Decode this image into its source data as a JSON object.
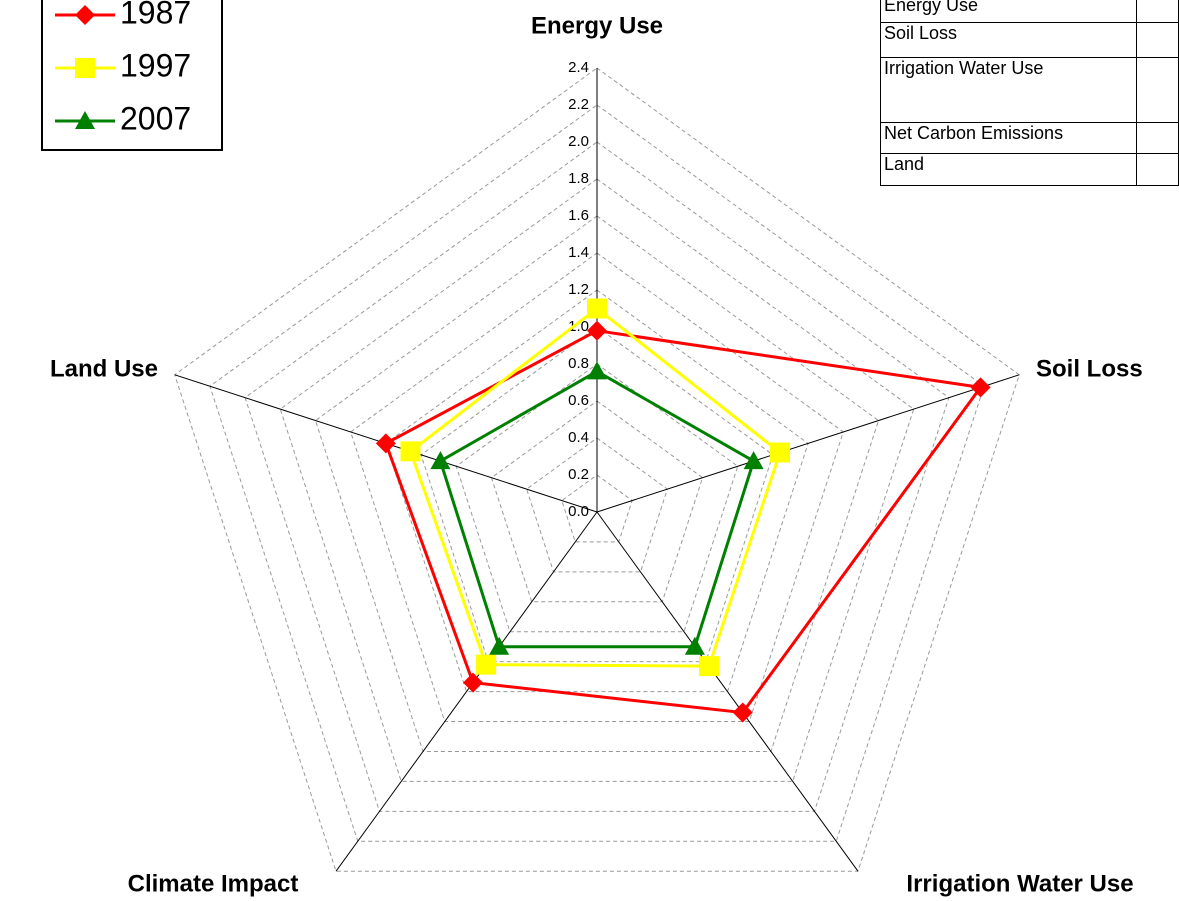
{
  "chart_data": {
    "type": "radar",
    "categories": [
      "Energy Use",
      "Soil Loss",
      "Irrigation Water Use",
      "Climate Impact",
      "Land Use"
    ],
    "series": [
      {
        "name": "1987",
        "color": "#ff0000",
        "marker": "diamond",
        "values": [
          0.98,
          2.18,
          1.34,
          1.14,
          1.2
        ]
      },
      {
        "name": "1997",
        "color": "#ffff00",
        "marker": "square",
        "values": [
          1.1,
          1.04,
          1.03,
          1.02,
          1.06
        ]
      },
      {
        "name": "2007",
        "color": "#008000",
        "marker": "triangle",
        "values": [
          0.76,
          0.89,
          0.9,
          0.9,
          0.89
        ]
      }
    ],
    "ylim": [
      0,
      2.4
    ],
    "yticks": [
      {
        "value": 0,
        "label": "0.0"
      },
      0.2,
      0.4,
      0.6,
      0.8,
      {
        "value": 1,
        "label": "1.0"
      },
      1.2,
      1.4,
      1.6,
      1.8,
      {
        "value": 2,
        "label": "2.0"
      },
      2.2,
      2.4
    ],
    "grid": true,
    "legend": "upper left"
  },
  "table": {
    "rows": [
      [
        "Energy Use"
      ],
      [
        "Soil Loss"
      ],
      [
        "Irrigation Water Use"
      ],
      [
        "Net Carbon Emissions"
      ],
      [
        "Land"
      ]
    ]
  }
}
